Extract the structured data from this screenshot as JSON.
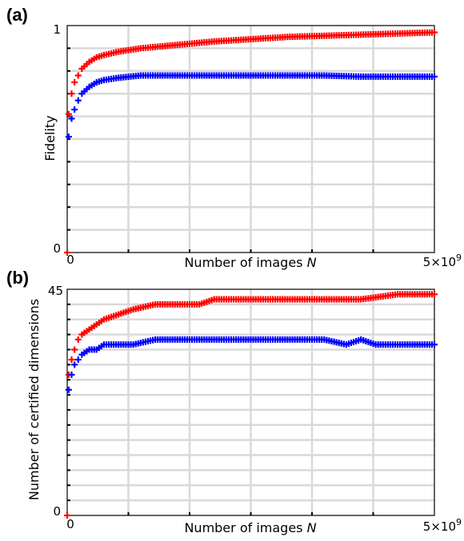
{
  "chart_data": [
    {
      "panel": "(a)",
      "type": "scatter",
      "marker": "plus",
      "xlabel": "Number of images ",
      "xlabel_var": "N",
      "ylabel": "Fidelity",
      "xlim": [
        0,
        5000000000
      ],
      "ylim": [
        0,
        1
      ],
      "x_tick_labels": {
        "start": "0",
        "end_base": "5×10",
        "end_exp": "9"
      },
      "y_tick_labels": {
        "bottom": "0",
        "top": "1"
      },
      "grid": true,
      "series": [
        {
          "color": "#ff0000",
          "x": [
            0,
            20000000,
            60000000,
            100000000,
            150000000,
            200000000,
            300000000,
            400000000,
            500000000,
            700000000,
            1000000000,
            1500000000,
            2000000000,
            2500000000,
            3000000000,
            3500000000,
            4000000000,
            4500000000,
            5000000000
          ],
          "y": [
            0.0,
            0.61,
            0.7,
            0.75,
            0.78,
            0.81,
            0.84,
            0.86,
            0.87,
            0.885,
            0.9,
            0.915,
            0.93,
            0.94,
            0.95,
            0.955,
            0.96,
            0.965,
            0.97
          ]
        },
        {
          "color": "#0000ff",
          "x": [
            20000000,
            60000000,
            100000000,
            150000000,
            200000000,
            300000000,
            400000000,
            500000000,
            700000000,
            1000000000,
            1500000000,
            2000000000,
            2500000000,
            3000000000,
            3500000000,
            4000000000,
            4500000000,
            5000000000
          ],
          "y": [
            0.51,
            0.59,
            0.63,
            0.67,
            0.7,
            0.73,
            0.75,
            0.76,
            0.77,
            0.78,
            0.78,
            0.78,
            0.78,
            0.78,
            0.78,
            0.775,
            0.775,
            0.775
          ]
        }
      ]
    },
    {
      "panel": "(b)",
      "type": "scatter",
      "marker": "plus",
      "xlabel": "Number of images ",
      "xlabel_var": "N",
      "ylabel": "Number of certified dimensions",
      "xlim": [
        0,
        5000000000
      ],
      "ylim": [
        0,
        45
      ],
      "x_tick_labels": {
        "start": "0",
        "end_base": "5×10",
        "end_exp": "9"
      },
      "y_tick_labels": {
        "bottom": "0",
        "top": "45"
      },
      "grid": true,
      "series": [
        {
          "color": "#ff0000",
          "x": [
            0,
            20000000,
            60000000,
            100000000,
            150000000,
            200000000,
            300000000,
            400000000,
            500000000,
            700000000,
            900000000,
            1200000000,
            1500000000,
            1800000000,
            2000000000,
            2500000000,
            3000000000,
            3500000000,
            4000000000,
            4500000000,
            5000000000
          ],
          "y": [
            0,
            28,
            31,
            33,
            35,
            36,
            37,
            38,
            39,
            40,
            41,
            42,
            42,
            42,
            43,
            43,
            43,
            43,
            43,
            44,
            44
          ]
        },
        {
          "color": "#0000ff",
          "x": [
            20000000,
            60000000,
            100000000,
            150000000,
            200000000,
            300000000,
            400000000,
            500000000,
            700000000,
            900000000,
            1200000000,
            1500000000,
            2000000000,
            2500000000,
            3000000000,
            3500000000,
            3800000000,
            4000000000,
            4200000000,
            4500000000,
            5000000000
          ],
          "y": [
            25,
            28,
            30,
            31,
            32,
            33,
            33,
            34,
            34,
            34,
            35,
            35,
            35,
            35,
            35,
            35,
            34,
            35,
            34,
            34,
            34
          ]
        }
      ]
    }
  ]
}
